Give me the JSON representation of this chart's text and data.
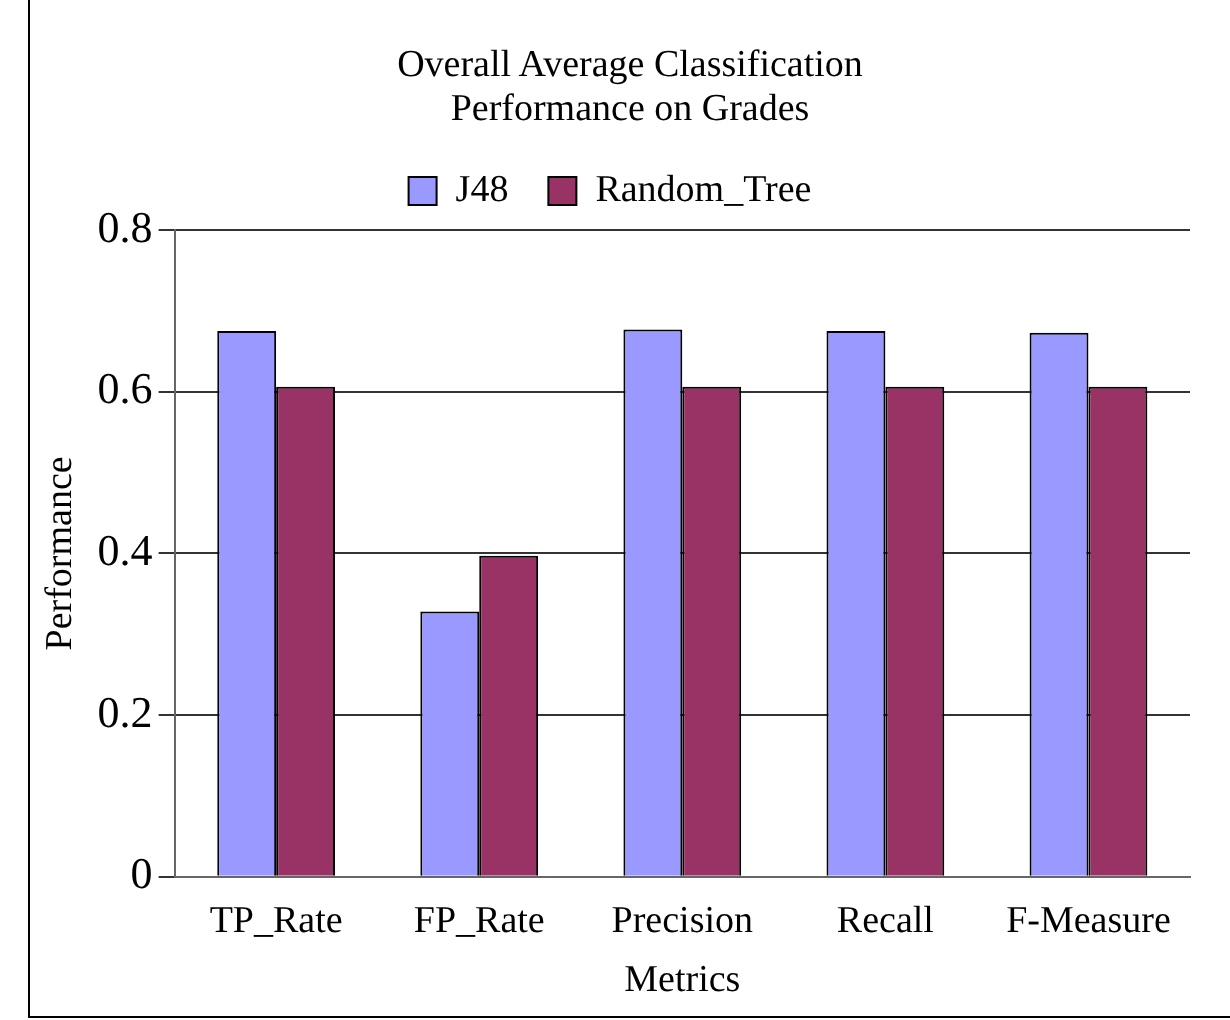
{
  "chart_data": {
    "type": "bar",
    "title": "Overall Average Classification Performance on Grades",
    "xlabel": "Metrics",
    "ylabel": "Performance",
    "categories": [
      "TP_Rate",
      "FP_Rate",
      "Precision",
      "Recall",
      "F-Measure"
    ],
    "series": [
      {
        "name": "J48",
        "color": "#9999ff",
        "values": [
          0.675,
          0.328,
          0.677,
          0.675,
          0.673
        ]
      },
      {
        "name": "Random_Tree",
        "color": "#993366",
        "values": [
          0.606,
          0.397,
          0.606,
          0.606,
          0.606
        ]
      }
    ],
    "ylim": [
      0,
      0.8
    ],
    "yticks": [
      0,
      0.2,
      0.4,
      0.6,
      0.8
    ],
    "grid": "y",
    "legend": "top"
  }
}
